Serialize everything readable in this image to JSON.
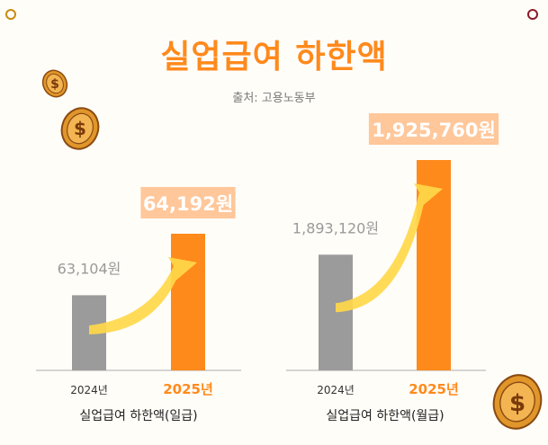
{
  "header": {
    "title": "실업급여 하한액",
    "source": "출처: 고용노동부"
  },
  "colors": {
    "accent": "#ff8a1c",
    "previous_bar": "#9b9b9b",
    "arrow": "#ffd84a",
    "label_box": "#ffc79a",
    "gold": "#e0962a"
  },
  "icons": [
    "coin-icon",
    "dollar-icon"
  ],
  "chart_data": [
    {
      "type": "bar",
      "title": "실업급여 하한액(일급)",
      "categories": [
        "2024년",
        "2025년"
      ],
      "values": [
        63104,
        64192
      ],
      "value_labels": [
        "63,104원",
        "64,192원"
      ],
      "highlight": "2025년",
      "grid": false
    },
    {
      "type": "bar",
      "title": "실업급여 하한액(월급)",
      "categories": [
        "2024년",
        "2025년"
      ],
      "values": [
        1893120,
        1925760
      ],
      "value_labels": [
        "1,893,120원",
        "1,925,760원"
      ],
      "highlight": "2025년",
      "grid": false
    }
  ]
}
